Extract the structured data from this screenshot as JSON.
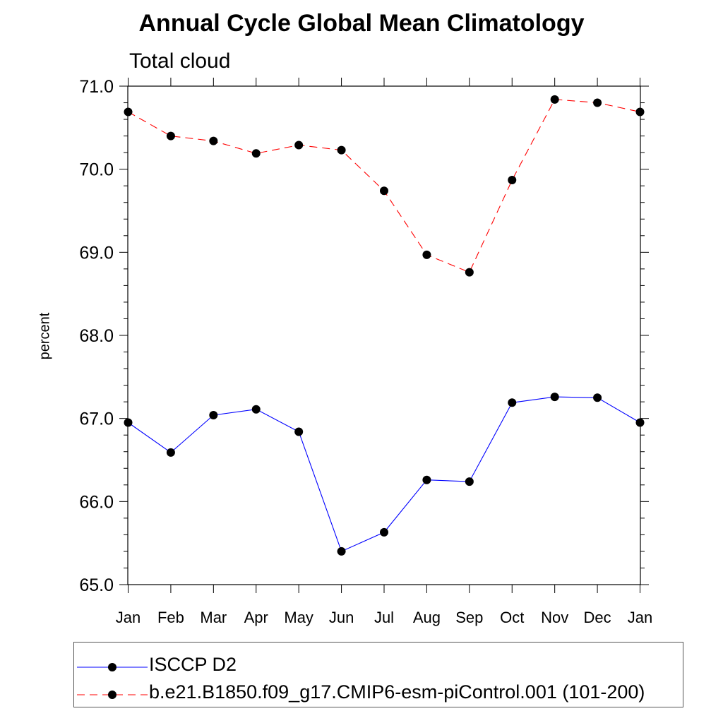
{
  "chart_data": {
    "type": "line",
    "title": "Annual Cycle Global Mean Climatology",
    "subtitle": "Total cloud",
    "ylabel": "percent",
    "xlabel": "",
    "categories": [
      "Jan",
      "Feb",
      "Mar",
      "Apr",
      "May",
      "Jun",
      "Jul",
      "Aug",
      "Sep",
      "Oct",
      "Nov",
      "Dec",
      "Jan"
    ],
    "ylim": [
      65.0,
      71.0
    ],
    "yticks": [
      "65.0",
      "66.0",
      "67.0",
      "68.0",
      "69.0",
      "70.0",
      "71.0"
    ],
    "series": [
      {
        "name": "ISCCP D2",
        "color": "#0000ff",
        "dash": "solid",
        "values": [
          66.95,
          66.59,
          67.04,
          67.11,
          66.84,
          65.4,
          65.63,
          66.26,
          66.24,
          67.19,
          67.26,
          67.25,
          66.95
        ]
      },
      {
        "name": "b.e21.B1850.f09_g17.CMIP6-esm-piControl.001 (101-200)",
        "color": "#ff0000",
        "dash": "dashed",
        "values": [
          70.69,
          70.4,
          70.34,
          70.19,
          70.29,
          70.23,
          69.74,
          68.97,
          68.76,
          69.87,
          70.84,
          70.8,
          70.69
        ]
      }
    ],
    "grid": false,
    "legend_position": "bottom"
  }
}
